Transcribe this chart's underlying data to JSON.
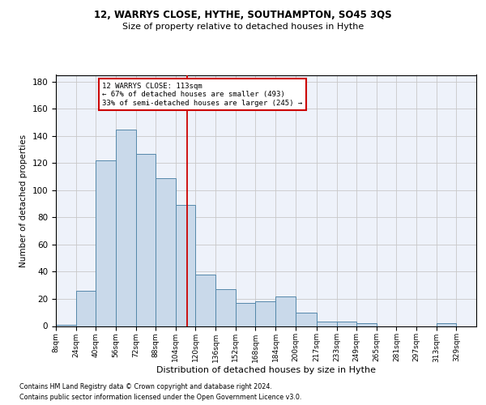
{
  "title1": "12, WARRYS CLOSE, HYTHE, SOUTHAMPTON, SO45 3QS",
  "title2": "Size of property relative to detached houses in Hythe",
  "xlabel": "Distribution of detached houses by size in Hythe",
  "ylabel": "Number of detached properties",
  "footnote1": "Contains HM Land Registry data © Crown copyright and database right 2024.",
  "footnote2": "Contains public sector information licensed under the Open Government Licence v3.0.",
  "annotation_line1": "12 WARRYS CLOSE: 113sqm",
  "annotation_line2": "← 67% of detached houses are smaller (493)",
  "annotation_line3": "33% of semi-detached houses are larger (245) →",
  "property_size": 113,
  "bar_color": "#c9d9ea",
  "bar_edge_color": "#5588aa",
  "vline_color": "#cc0000",
  "annotation_box_color": "#cc0000",
  "background_color": "#eef2fa",
  "grid_color": "#c8c8c8",
  "bins": [
    8,
    24,
    40,
    56,
    72,
    88,
    104,
    120,
    136,
    152,
    168,
    184,
    200,
    217,
    233,
    249,
    265,
    281,
    297,
    313,
    329,
    345
  ],
  "bin_labels": [
    "8sqm",
    "24sqm",
    "40sqm",
    "56sqm",
    "72sqm",
    "88sqm",
    "104sqm",
    "120sqm",
    "136sqm",
    "152sqm",
    "168sqm",
    "184sqm",
    "200sqm",
    "217sqm",
    "233sqm",
    "249sqm",
    "265sqm",
    "281sqm",
    "297sqm",
    "313sqm",
    "329sqm"
  ],
  "values": [
    1,
    26,
    122,
    145,
    127,
    109,
    89,
    38,
    27,
    17,
    18,
    22,
    10,
    3,
    3,
    2,
    0,
    0,
    0,
    2,
    0
  ],
  "ylim": [
    0,
    185
  ],
  "yticks": [
    0,
    20,
    40,
    60,
    80,
    100,
    120,
    140,
    160,
    180
  ]
}
